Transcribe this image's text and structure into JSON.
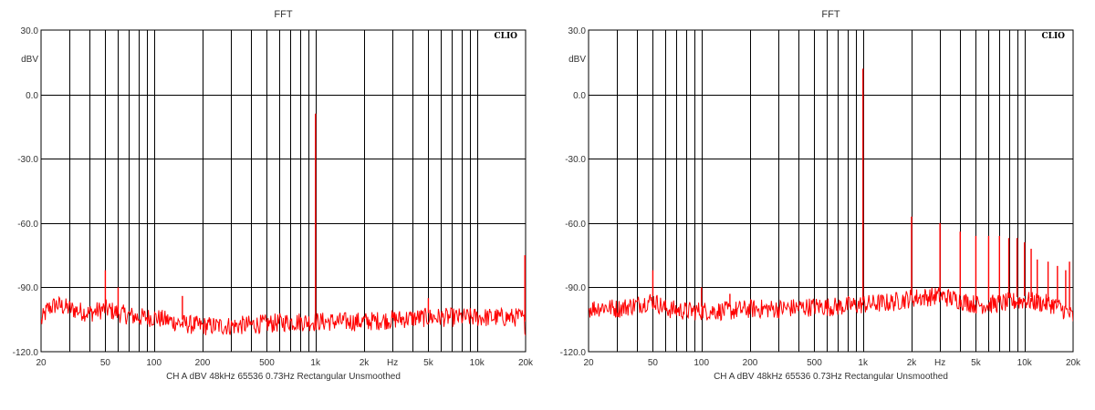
{
  "chart_data": [
    {
      "type": "line",
      "title": "FFT",
      "brand": "CLIO",
      "ylabel": "dBV",
      "xlabel": "Hz",
      "x_scale": "log",
      "xlim": [
        20,
        20000
      ],
      "ylim": [
        -120,
        30
      ],
      "y_ticks": [
        "30.0",
        "0.0",
        "-30.0",
        "-60.0",
        "-90.0",
        "-120.0"
      ],
      "x_ticks": [
        "20",
        "50",
        "100",
        "200",
        "500",
        "1k",
        "2k",
        "5k",
        "10k",
        "20k"
      ],
      "footer": "CH A  dBV  48kHz  65536  0.73Hz  Rectangular  Unsmoothed",
      "series_color": "#ff0000",
      "noise_floor": [
        [
          20,
          -106
        ],
        [
          22,
          -100
        ],
        [
          25,
          -98
        ],
        [
          30,
          -100
        ],
        [
          40,
          -102
        ],
        [
          50,
          -100
        ],
        [
          60,
          -102
        ],
        [
          80,
          -104
        ],
        [
          100,
          -104
        ],
        [
          150,
          -107
        ],
        [
          200,
          -108
        ],
        [
          300,
          -108
        ],
        [
          500,
          -107
        ],
        [
          700,
          -106
        ],
        [
          1000,
          -106
        ],
        [
          2000,
          -106
        ],
        [
          3000,
          -105
        ],
        [
          5000,
          -104
        ],
        [
          10000,
          -104
        ],
        [
          15000,
          -104
        ],
        [
          19000,
          -104
        ],
        [
          20000,
          -108
        ]
      ],
      "peaks": [
        [
          25,
          -96
        ],
        [
          50,
          -82
        ],
        [
          60,
          -90
        ],
        [
          150,
          -94
        ],
        [
          1000,
          -9
        ],
        [
          5000,
          -95
        ],
        [
          19800,
          -75
        ],
        [
          20000,
          -75
        ]
      ]
    },
    {
      "type": "line",
      "title": "FFT",
      "brand": "CLIO",
      "ylabel": "dBV",
      "xlabel": "Hz",
      "x_scale": "log",
      "xlim": [
        20,
        20000
      ],
      "ylim": [
        -120,
        30
      ],
      "y_ticks": [
        "30.0",
        "0.0",
        "-30.0",
        "-60.0",
        "-90.0",
        "-120.0"
      ],
      "x_ticks": [
        "20",
        "50",
        "100",
        "200",
        "500",
        "1k",
        "2k",
        "5k",
        "10k",
        "20k"
      ],
      "footer": "CH A  dBV  48kHz  65536  0.73Hz  Rectangular  Unsmoothed",
      "series_color": "#ff0000",
      "noise_floor": [
        [
          20,
          -100
        ],
        [
          25,
          -99
        ],
        [
          30,
          -100
        ],
        [
          40,
          -98
        ],
        [
          50,
          -96
        ],
        [
          60,
          -100
        ],
        [
          80,
          -101
        ],
        [
          100,
          -101
        ],
        [
          150,
          -101
        ],
        [
          200,
          -100
        ],
        [
          300,
          -100
        ],
        [
          500,
          -99
        ],
        [
          700,
          -99
        ],
        [
          1000,
          -98
        ],
        [
          1500,
          -97
        ],
        [
          2000,
          -95
        ],
        [
          3000,
          -94
        ],
        [
          4000,
          -96
        ],
        [
          5000,
          -98
        ],
        [
          6000,
          -98
        ],
        [
          8000,
          -97
        ],
        [
          10000,
          -96
        ],
        [
          12000,
          -97
        ],
        [
          15000,
          -98
        ],
        [
          18000,
          -101
        ],
        [
          20000,
          -104
        ]
      ],
      "peaks": [
        [
          50,
          -82
        ],
        [
          100,
          -90
        ],
        [
          150,
          -93
        ],
        [
          1000,
          12
        ],
        [
          2000,
          -57
        ],
        [
          3000,
          -60
        ],
        [
          4000,
          -64
        ],
        [
          5000,
          -66
        ],
        [
          6000,
          -66
        ],
        [
          7000,
          -66
        ],
        [
          8000,
          -67
        ],
        [
          9000,
          -67
        ],
        [
          10000,
          -69
        ],
        [
          11000,
          -72
        ],
        [
          12000,
          -77
        ],
        [
          14000,
          -78
        ],
        [
          16000,
          -80
        ],
        [
          18000,
          -82
        ],
        [
          19000,
          -78
        ]
      ]
    }
  ]
}
